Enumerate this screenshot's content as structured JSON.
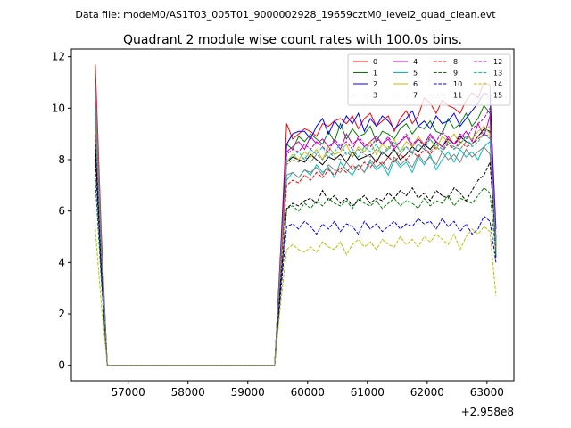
{
  "chart_data": {
    "type": "line",
    "suptitle": "Data file: modeM0/AS1T03_005T01_9000002928_19659cztM0_level2_quad_clean.evt",
    "title": "Quadrant 2 module wise count rates with 100.0s bins.",
    "xlabel": "",
    "ylabel": "",
    "x_offset_label": "+2.958e8",
    "x_start": 56450,
    "x_step": 100,
    "xlim": [
      56050,
      63450
    ],
    "ylim": [
      -0.6,
      12.3
    ],
    "xticks": [
      57000,
      58000,
      59000,
      60000,
      61000,
      62000,
      63000
    ],
    "yticks": [
      0,
      2,
      4,
      6,
      8,
      10,
      12
    ],
    "legend_position": "top-right",
    "zero_run": 29,
    "series": [
      {
        "name": "0",
        "color": "#ff0000",
        "dash": false,
        "head": [
          11.7,
          5.2
        ],
        "tail": [
          4.5,
          9.4,
          8.8,
          9.0,
          9.2,
          9.1,
          8.9,
          9.4,
          9.3,
          9.5,
          9.6,
          9.4,
          9.7,
          9.2,
          9.6,
          9.8,
          9.3,
          9.5,
          9.7,
          9.1,
          9.6,
          9.9,
          9.4,
          9.7,
          10.4,
          10.2,
          9.8,
          10.3,
          10.1,
          10.0,
          9.8,
          10.3,
          10.6,
          10.4,
          11.0,
          10.9,
          4.4
        ]
      },
      {
        "name": "1",
        "color": "#008000",
        "dash": false,
        "head": [
          9.5,
          4.3
        ],
        "tail": [
          4.3,
          8.6,
          8.4,
          8.9,
          8.7,
          9.0,
          8.8,
          8.6,
          9.1,
          8.7,
          9.4,
          8.8,
          9.2,
          8.9,
          9.0,
          9.3,
          8.7,
          9.1,
          9.0,
          8.8,
          9.2,
          9.4,
          9.0,
          9.3,
          9.2,
          9.5,
          9.1,
          9.0,
          9.6,
          9.2,
          9.4,
          9.8,
          9.3,
          9.6,
          10.1,
          9.8,
          4.8
        ]
      },
      {
        "name": "2",
        "color": "#0000ff",
        "dash": false,
        "head": [
          10.8,
          4.8
        ],
        "tail": [
          4.4,
          8.6,
          9.0,
          9.1,
          9.1,
          8.8,
          9.3,
          9.6,
          9.0,
          9.5,
          9.2,
          9.7,
          9.4,
          9.8,
          9.1,
          9.6,
          9.3,
          9.7,
          9.5,
          9.2,
          9.4,
          9.6,
          9.9,
          9.3,
          9.5,
          9.2,
          9.7,
          9.4,
          9.5,
          9.8,
          9.3,
          9.6,
          9.9,
          10.2,
          10.6,
          10.5,
          5.3
        ]
      },
      {
        "name": "3",
        "color": "#000000",
        "dash": false,
        "head": [
          8.5,
          3.9
        ],
        "tail": [
          4.0,
          7.9,
          8.1,
          8.0,
          7.9,
          8.2,
          8.0,
          7.8,
          8.1,
          8.0,
          8.2,
          7.9,
          8.3,
          8.0,
          8.1,
          8.2,
          7.9,
          8.3,
          8.1,
          8.4,
          8.0,
          8.2,
          8.5,
          8.3,
          8.6,
          8.4,
          8.7,
          8.5,
          8.8,
          8.6,
          8.9,
          8.7,
          8.6,
          8.9,
          9.2,
          9.1,
          4.2
        ]
      },
      {
        "name": "4",
        "color": "#bf00bf",
        "dash": false,
        "head": [
          10.3,
          4.6
        ],
        "tail": [
          4.2,
          8.3,
          8.5,
          8.7,
          8.4,
          8.9,
          8.6,
          8.8,
          8.5,
          8.7,
          8.4,
          9.0,
          8.6,
          8.8,
          8.5,
          8.7,
          8.9,
          8.6,
          8.8,
          8.4,
          8.7,
          8.9,
          8.5,
          8.8,
          8.6,
          9.0,
          8.7,
          8.5,
          8.9,
          8.6,
          8.8,
          9.1,
          8.7,
          9.4,
          8.9,
          9.7,
          4.9
        ]
      },
      {
        "name": "5",
        "color": "#00bfbf",
        "dash": false,
        "head": [
          10.0,
          4.5
        ],
        "tail": [
          3.8,
          7.2,
          7.5,
          7.3,
          7.6,
          7.4,
          7.8,
          7.5,
          7.7,
          7.3,
          7.9,
          7.6,
          7.4,
          7.8,
          7.5,
          7.9,
          7.6,
          7.8,
          7.4,
          8.0,
          7.7,
          7.9,
          7.5,
          8.1,
          7.8,
          8.2,
          7.6,
          8.0,
          8.3,
          7.9,
          8.4,
          8.1,
          8.3,
          8.0,
          8.5,
          8.7,
          4.5
        ]
      },
      {
        "name": "6",
        "color": "#bfbf00",
        "dash": false,
        "head": [
          9.2,
          4.2
        ],
        "tail": [
          4.1,
          7.9,
          8.2,
          8.0,
          8.3,
          8.1,
          8.4,
          8.0,
          8.5,
          8.2,
          8.3,
          8.6,
          8.1,
          8.5,
          8.3,
          8.7,
          8.2,
          8.6,
          8.4,
          8.8,
          8.3,
          8.7,
          8.5,
          8.9,
          8.6,
          8.8,
          8.4,
          8.9,
          8.7,
          9.0,
          8.6,
          8.9,
          8.8,
          9.1,
          9.3,
          9.0,
          4.6
        ]
      },
      {
        "name": "7",
        "color": "#808080",
        "dash": false,
        "head": [
          11.0,
          4.9
        ],
        "tail": [
          3.7,
          7.4,
          7.5,
          7.3,
          7.6,
          7.5,
          7.7,
          7.4,
          7.8,
          7.6,
          7.5,
          7.9,
          7.6,
          7.8,
          7.5,
          8.0,
          7.7,
          7.9,
          7.6,
          8.1,
          7.8,
          8.0,
          7.7,
          8.2,
          7.9,
          8.1,
          7.8,
          8.3,
          8.0,
          8.2,
          7.9,
          8.4,
          8.1,
          8.3,
          8.5,
          8.2,
          4.4
        ]
      },
      {
        "name": "8",
        "color": "#ff0000",
        "dash": true,
        "head": [
          9.0,
          4.1
        ],
        "tail": [
          3.6,
          7.0,
          7.2,
          7.1,
          7.4,
          7.2,
          7.5,
          7.3,
          7.6,
          7.4,
          7.7,
          7.5,
          7.8,
          7.6,
          7.9,
          7.7,
          8.0,
          7.8,
          8.1,
          7.9,
          8.2,
          8.0,
          8.3,
          8.1,
          8.4,
          8.2,
          8.5,
          8.3,
          8.6,
          8.4,
          8.7,
          8.5,
          8.6,
          8.8,
          9.0,
          8.9,
          4.6
        ]
      },
      {
        "name": "9",
        "color": "#008000",
        "dash": true,
        "head": [
          7.2,
          3.3
        ],
        "tail": [
          3.1,
          6.1,
          6.2,
          6.0,
          6.3,
          6.1,
          6.4,
          6.2,
          6.5,
          6.3,
          6.2,
          6.4,
          6.1,
          6.5,
          6.3,
          6.2,
          6.4,
          6.1,
          6.3,
          6.5,
          6.2,
          6.4,
          6.3,
          6.1,
          6.5,
          6.2,
          6.4,
          6.3,
          6.6,
          6.2,
          6.5,
          6.4,
          6.3,
          6.6,
          6.9,
          6.7,
          4.3
        ]
      },
      {
        "name": "10",
        "color": "#0000ff",
        "dash": true,
        "head": [
          8.0,
          3.6
        ],
        "tail": [
          2.8,
          5.4,
          5.5,
          5.3,
          5.6,
          5.4,
          5.1,
          5.5,
          5.3,
          5.6,
          5.2,
          5.5,
          5.4,
          5.1,
          5.6,
          5.3,
          5.5,
          5.2,
          5.4,
          5.6,
          5.3,
          5.5,
          5.4,
          5.7,
          5.5,
          5.6,
          5.3,
          5.7,
          5.4,
          5.6,
          5.2,
          5.5,
          5.1,
          5.3,
          5.8,
          5.6,
          4.0
        ]
      },
      {
        "name": "11",
        "color": "#000000",
        "dash": true,
        "head": [
          8.6,
          3.9
        ],
        "tail": [
          3.2,
          6.1,
          6.3,
          6.2,
          6.4,
          6.5,
          6.3,
          6.8,
          6.4,
          6.6,
          6.3,
          6.5,
          6.2,
          6.4,
          6.6,
          6.3,
          6.5,
          6.4,
          6.7,
          6.5,
          6.8,
          6.6,
          6.9,
          6.5,
          6.7,
          6.4,
          6.8,
          6.6,
          6.5,
          6.9,
          6.7,
          6.4,
          6.8,
          7.2,
          7.4,
          7.9,
          4.7
        ]
      },
      {
        "name": "12",
        "color": "#bf00bf",
        "dash": true,
        "head": [
          10.0,
          4.5
        ],
        "tail": [
          4.2,
          8.2,
          8.4,
          8.3,
          8.6,
          8.4,
          8.7,
          8.5,
          8.3,
          8.8,
          8.5,
          8.7,
          8.4,
          8.9,
          8.6,
          8.5,
          8.8,
          8.6,
          8.9,
          8.5,
          8.7,
          9.0,
          8.6,
          8.8,
          8.5,
          8.9,
          8.7,
          9.1,
          8.8,
          8.6,
          9.0,
          8.8,
          9.2,
          9.4,
          9.6,
          10.0,
          5.0
        ]
      },
      {
        "name": "13",
        "color": "#00bfbf",
        "dash": true,
        "head": [
          10.0,
          4.5
        ],
        "tail": [
          4.0,
          8.0,
          8.1,
          8.3,
          8.0,
          8.4,
          8.2,
          8.5,
          8.1,
          8.3,
          8.6,
          8.2,
          8.4,
          8.1,
          8.5,
          8.3,
          8.6,
          8.2,
          8.4,
          8.7,
          8.3,
          8.5,
          8.2,
          8.6,
          8.4,
          8.8,
          8.5,
          8.3,
          8.7,
          8.4,
          8.6,
          8.9,
          8.5,
          8.7,
          9.0,
          8.8,
          4.8
        ]
      },
      {
        "name": "14",
        "color": "#bfbf00",
        "dash": true,
        "head": [
          5.3,
          2.4
        ],
        "tail": [
          2.4,
          4.5,
          4.7,
          4.5,
          4.4,
          4.6,
          4.4,
          4.8,
          4.6,
          4.5,
          4.8,
          4.3,
          4.7,
          4.9,
          4.6,
          4.8,
          4.5,
          4.9,
          4.7,
          4.6,
          5.0,
          4.7,
          4.9,
          4.6,
          5.0,
          4.8,
          5.1,
          4.9,
          4.7,
          5.1,
          4.5,
          5.0,
          5.3,
          5.1,
          5.4,
          5.2,
          2.7
        ]
      },
      {
        "name": "15",
        "color": "#808080",
        "dash": true,
        "head": [
          9.6,
          4.3
        ],
        "tail": [
          3.9,
          7.8,
          8.0,
          7.9,
          8.1,
          7.9,
          8.2,
          8.0,
          8.3,
          8.1,
          8.0,
          8.3,
          8.1,
          8.4,
          8.2,
          8.1,
          8.4,
          8.2,
          8.5,
          8.3,
          8.2,
          8.5,
          8.3,
          8.6,
          8.4,
          8.3,
          8.6,
          8.4,
          8.7,
          8.5,
          8.4,
          8.7,
          8.6,
          8.9,
          9.1,
          9.3,
          4.6
        ]
      }
    ]
  }
}
